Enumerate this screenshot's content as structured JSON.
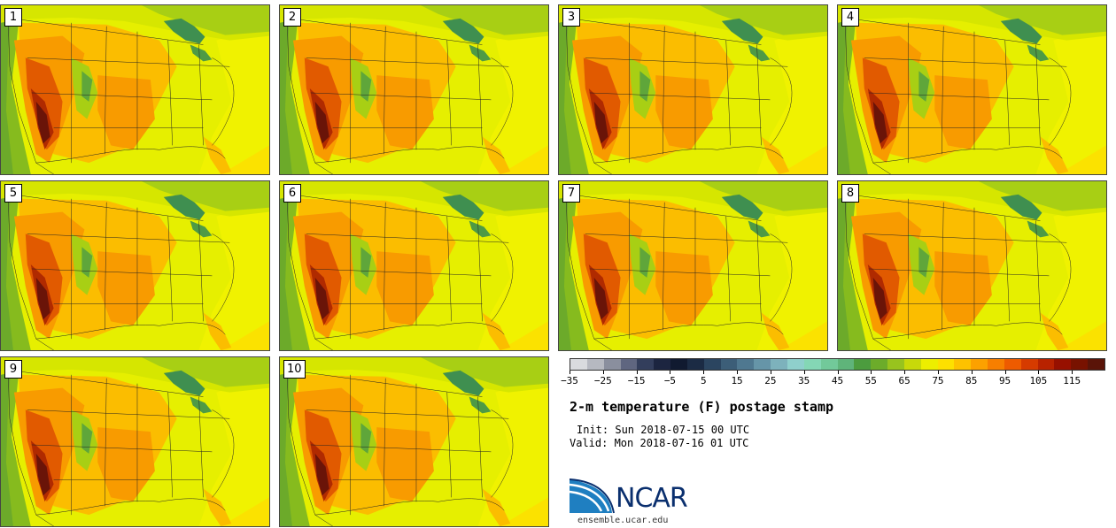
{
  "panels": [
    {
      "label": "1"
    },
    {
      "label": "2"
    },
    {
      "label": "3"
    },
    {
      "label": "4"
    },
    {
      "label": "5"
    },
    {
      "label": "6"
    },
    {
      "label": "7"
    },
    {
      "label": "8"
    },
    {
      "label": "9"
    },
    {
      "label": "10"
    }
  ],
  "colorbar": {
    "colors": [
      "#d9dbde",
      "#b6b9c1",
      "#8a8f9e",
      "#5f6680",
      "#333e5c",
      "#1c2540",
      "#101a30",
      "#1b2b44",
      "#2b4560",
      "#3c5e78",
      "#4f7890",
      "#6695a8",
      "#7db2bc",
      "#8fd0cc",
      "#84d7b5",
      "#72c99a",
      "#5fb47a",
      "#4c9c3e",
      "#6cac2a",
      "#98c31e",
      "#c8d90a",
      "#edee00",
      "#fde000",
      "#fdc200",
      "#fca100",
      "#f77f00",
      "#ee5b00",
      "#d63b00",
      "#b82200",
      "#971000",
      "#781200",
      "#5a1408"
    ],
    "tick_labels": [
      "−35",
      "−25",
      "−15",
      "−5",
      "5",
      "15",
      "25",
      "35",
      "45",
      "55",
      "65",
      "75",
      "85",
      "95",
      "105",
      "115"
    ]
  },
  "title": "2-m temperature (F) postage stamp",
  "init_text": "Init: Sun 2018-07-15 00 UTC",
  "valid_text": "Valid: Mon 2018-07-16 01 UTC",
  "logo": {
    "wordmark": "NCAR",
    "brand_color": "#0a2f6e",
    "accent_color": "#1f7fc1"
  },
  "website": "ensemble.ucar.edu"
}
